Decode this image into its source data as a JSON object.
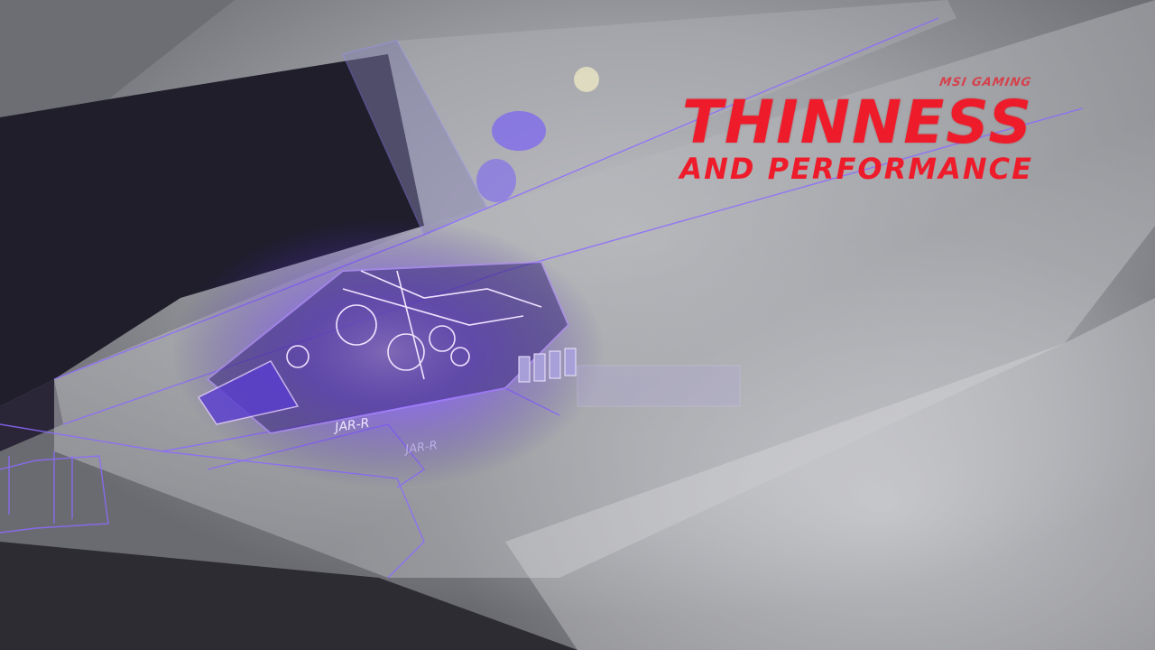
{
  "overlay": {
    "brand_logo": "MSI GAMING",
    "title": "THINNESS",
    "subtitle": "AND PERFORMANCE",
    "accent_color": "#ee1c2b"
  },
  "scene": {
    "port_label": "JAR-R",
    "port_label_reflection": "JAR-R",
    "glow_color": "#7b4dff"
  }
}
